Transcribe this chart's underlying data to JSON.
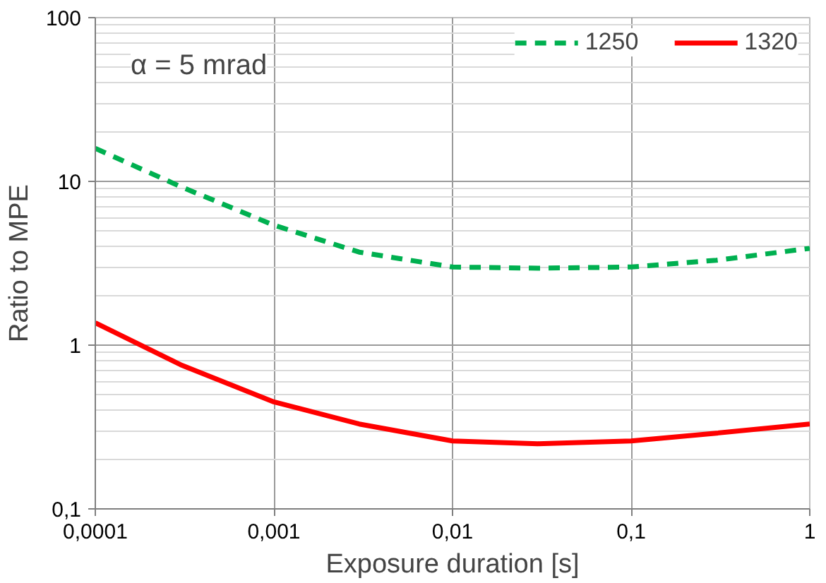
{
  "chart_data": {
    "type": "line",
    "xlabel": "Exposure duration [s]",
    "ylabel": "Ratio to MPE",
    "x": [
      0.0001,
      0.0003,
      0.001,
      0.003,
      0.01,
      0.03,
      0.1,
      0.3,
      1
    ],
    "series": [
      {
        "name": "1250",
        "color": "#00b050",
        "line_style": "dashed",
        "values": [
          15.9,
          9.3,
          5.4,
          3.7,
          3.0,
          2.95,
          3.0,
          3.3,
          3.9
        ]
      },
      {
        "name": "1320",
        "color": "#ff0000",
        "line_style": "solid",
        "values": [
          1.37,
          0.76,
          0.45,
          0.33,
          0.26,
          0.25,
          0.26,
          0.29,
          0.33
        ]
      }
    ],
    "log": "xy",
    "xlim": [
      0.0001,
      1
    ],
    "ylim": [
      0.1,
      100
    ],
    "xticks": [
      {
        "value": 0.0001,
        "label": "0,0001"
      },
      {
        "value": 0.001,
        "label": "0,001"
      },
      {
        "value": 0.01,
        "label": "0,01"
      },
      {
        "value": 0.1,
        "label": "0,1"
      },
      1
    ],
    "yticks": [
      {
        "value": 0.1,
        "label": "0,1"
      },
      1,
      10,
      100
    ],
    "grid": true,
    "legend": "top right",
    "marker": "none",
    "annotations": [
      "α = 5 mrad"
    ]
  }
}
